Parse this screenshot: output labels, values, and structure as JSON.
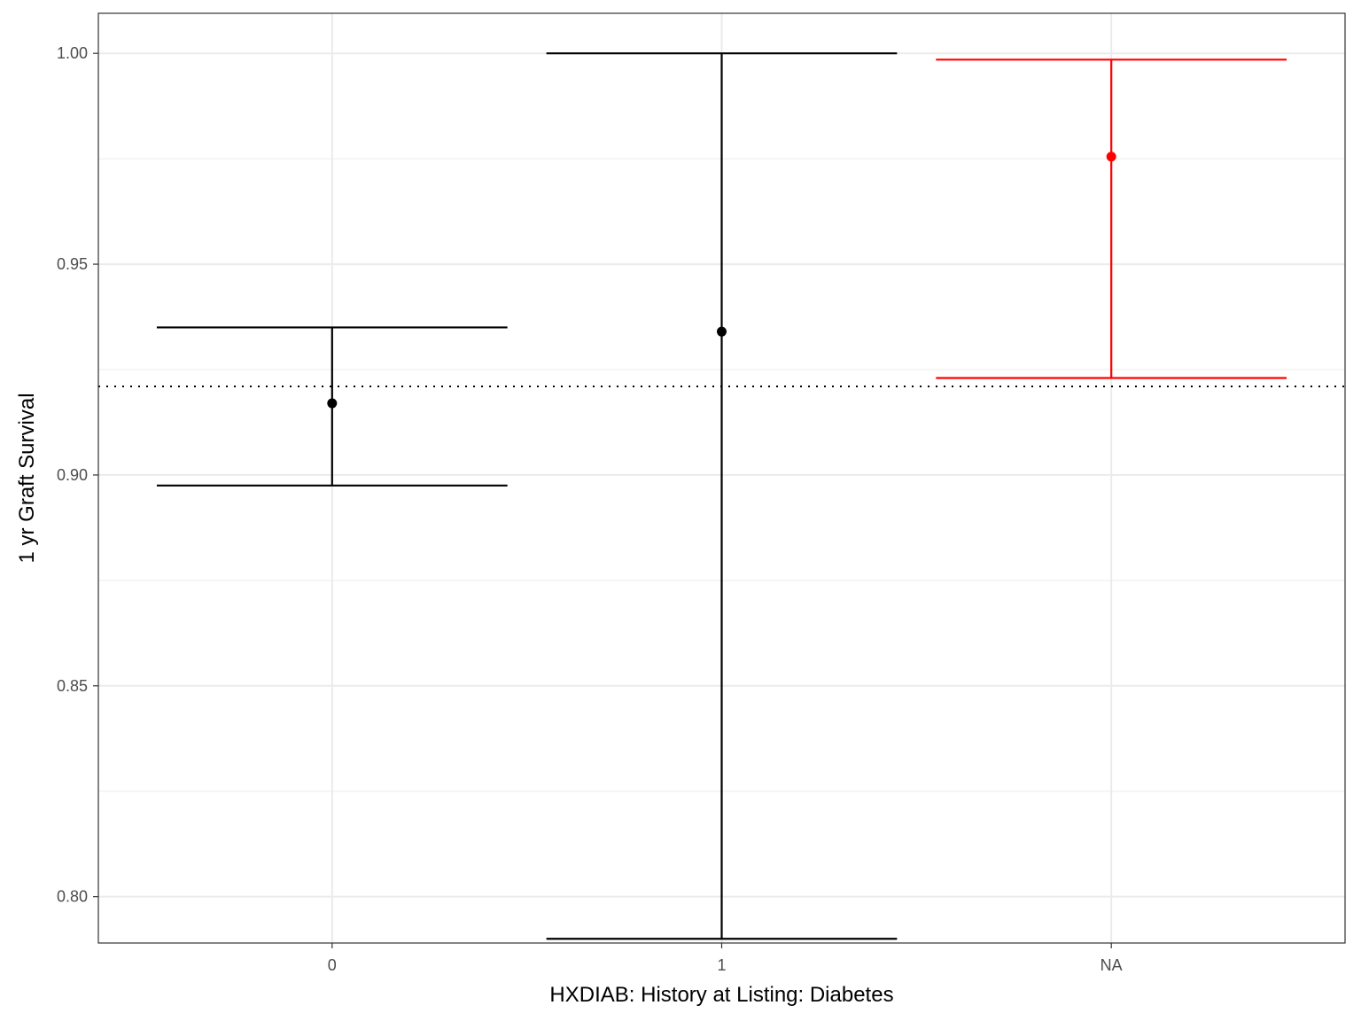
{
  "chart_data": {
    "type": "errorbar",
    "title": "",
    "xlabel": "HXDIAB: History at Listing: Diabetes",
    "ylabel": "1 yr Graft Survival",
    "categories": [
      "0",
      "1",
      "NA"
    ],
    "points": [
      {
        "category": "0",
        "estimate": 0.917,
        "lower": 0.8975,
        "upper": 0.935,
        "color": "#000000"
      },
      {
        "category": "1",
        "estimate": 0.934,
        "lower": 0.79,
        "upper": 1.0,
        "color": "#000000"
      },
      {
        "category": "NA",
        "estimate": 0.9755,
        "lower": 0.923,
        "upper": 0.9985,
        "color": "#ff0000"
      }
    ],
    "reference_line": {
      "value": 0.921,
      "style": "dotted",
      "color": "#000000"
    },
    "ylim": [
      0.789,
      1.0095
    ],
    "yticks": [
      0.8,
      0.85,
      0.9,
      0.95,
      1.0
    ],
    "ytick_labels": [
      "0.80",
      "0.85",
      "0.90",
      "0.95",
      "1.00"
    ],
    "grid": true,
    "theme": "bw"
  }
}
